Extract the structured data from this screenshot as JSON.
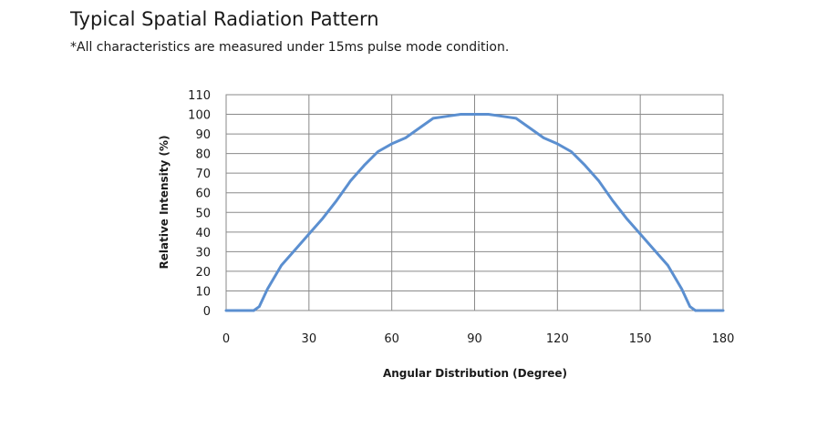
{
  "header": {
    "title": "Typical Spatial Radiation Pattern",
    "subtitle": "*All characteristics are measured under 15ms pulse mode condition."
  },
  "chart_data": {
    "type": "line",
    "xlabel": "Angular Distribution (Degree)",
    "ylabel": "Relative Intensity (%)",
    "xlim": [
      0,
      180
    ],
    "ylim": [
      0,
      110
    ],
    "xticks": [
      0,
      30,
      60,
      90,
      120,
      150,
      180
    ],
    "yticks": [
      0,
      10,
      20,
      30,
      40,
      50,
      60,
      70,
      80,
      90,
      100,
      110
    ],
    "grid": true,
    "line_color": "#5b8fd0",
    "series": [
      {
        "x": [
          0,
          10,
          12,
          15,
          20,
          25,
          30,
          35,
          40,
          45,
          50,
          55,
          60,
          65,
          70,
          75,
          80,
          85,
          90,
          95,
          100,
          105,
          110,
          115,
          120,
          125,
          130,
          135,
          140,
          145,
          150,
          155,
          160,
          165,
          168,
          170,
          175,
          180
        ],
        "y": [
          0,
          0,
          2,
          11,
          23,
          31,
          39,
          47,
          56,
          66,
          74,
          81,
          85,
          88,
          93,
          98,
          99,
          100,
          100,
          100,
          99,
          98,
          93,
          88,
          85,
          81,
          74,
          66,
          56,
          47,
          39,
          31,
          23,
          11,
          2,
          0,
          0,
          0
        ]
      }
    ]
  }
}
